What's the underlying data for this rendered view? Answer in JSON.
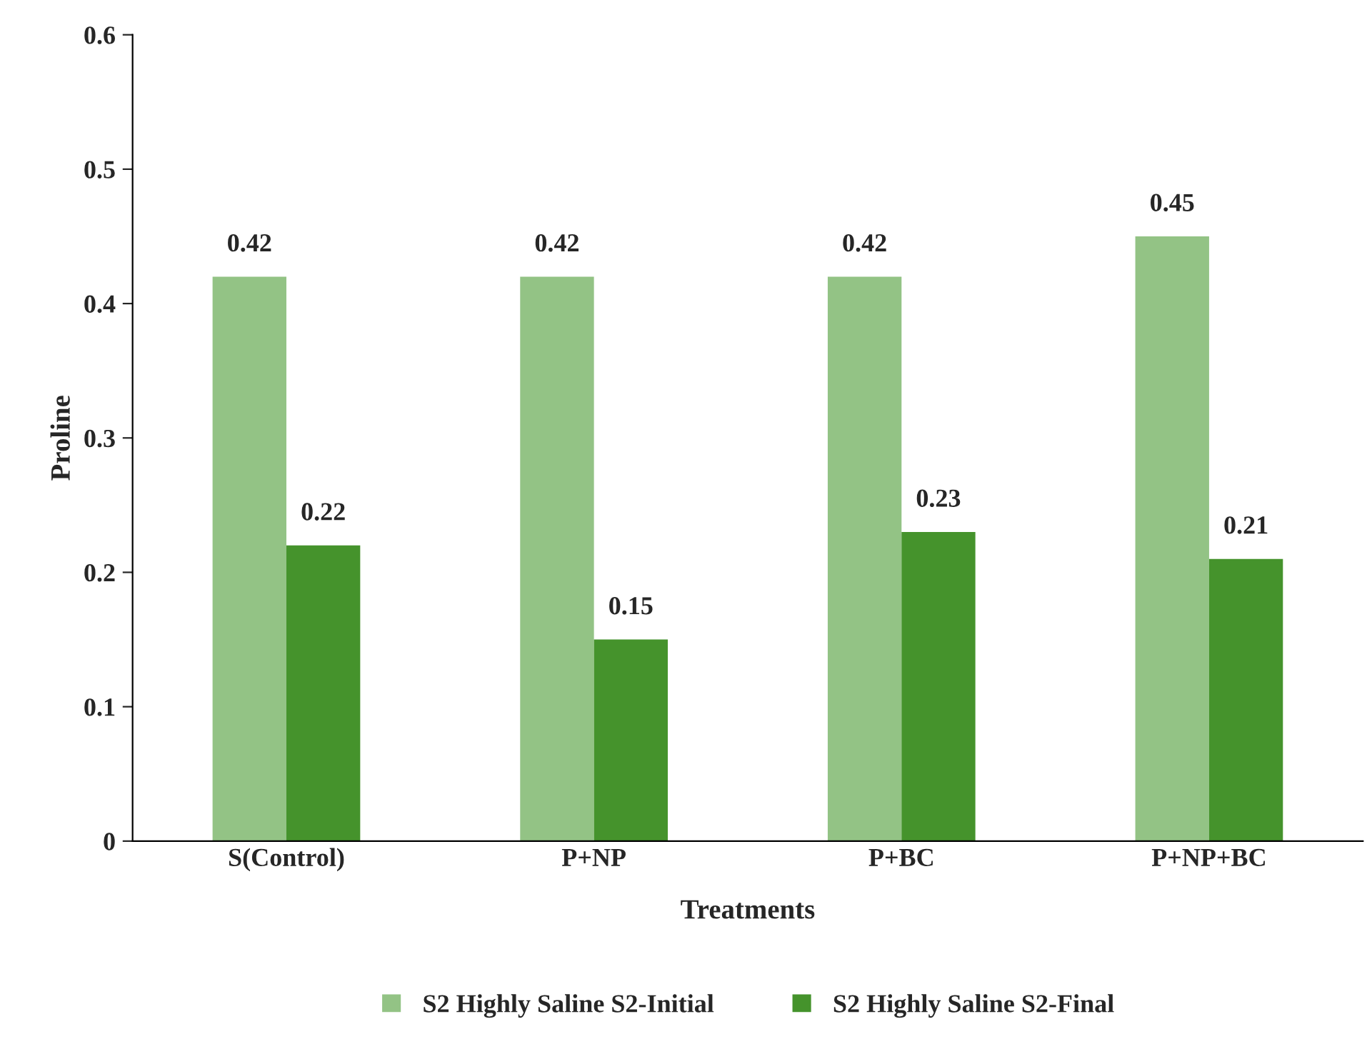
{
  "chart_data": {
    "type": "bar",
    "xlabel": "Treatments",
    "ylabel": "Proline",
    "categories": [
      "S(Control)",
      "P+NP",
      "P+BC",
      "P+NP+BC"
    ],
    "series": [
      {
        "name": "S2 Highly Saline S2-Initial",
        "color": "#93c385",
        "values": [
          0.42,
          0.42,
          0.42,
          0.45
        ]
      },
      {
        "name": "S2 Highly Saline S2-Final",
        "color": "#45932c",
        "values": [
          0.22,
          0.15,
          0.23,
          0.21
        ]
      }
    ],
    "ylim": [
      0,
      0.6
    ],
    "yticks": [
      {
        "value": 0,
        "label": "0"
      },
      0.1,
      0.2,
      0.3,
      0.4,
      0.5,
      0.6
    ],
    "data_labels": true,
    "legend": "bottom",
    "grid": false
  }
}
